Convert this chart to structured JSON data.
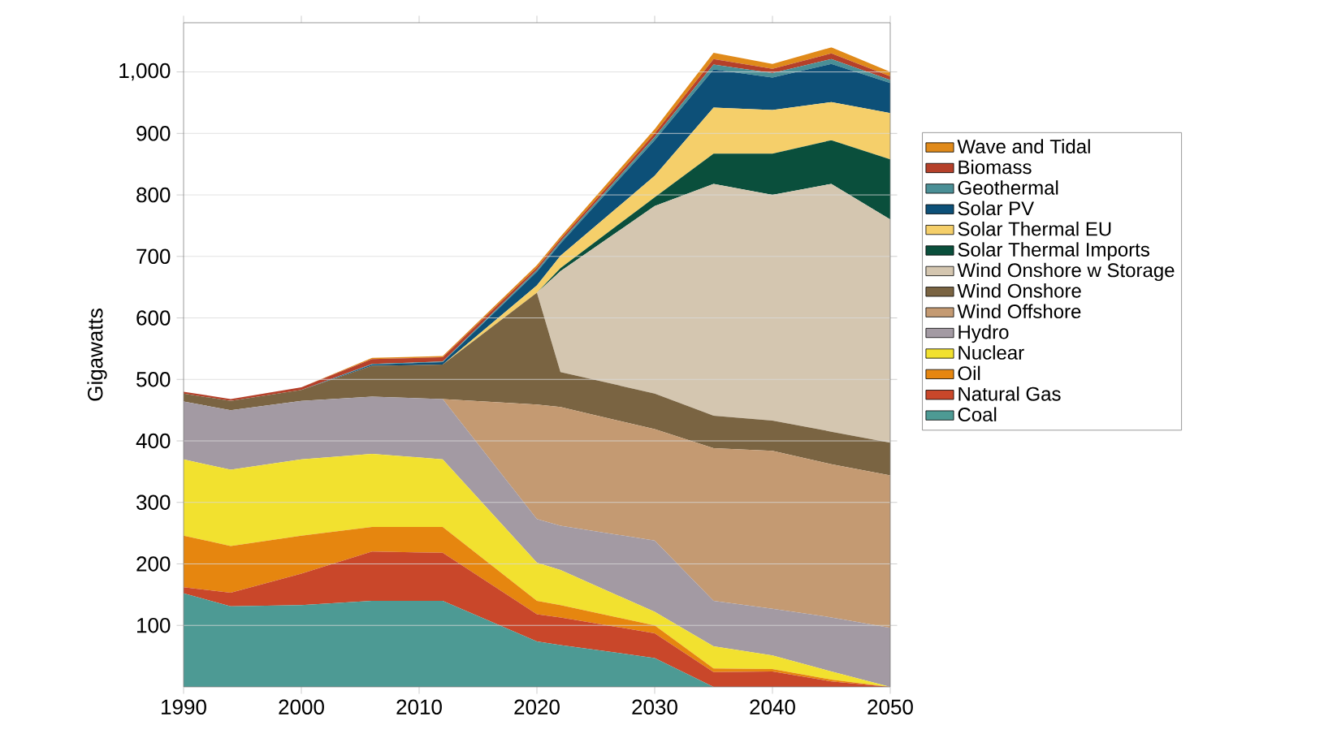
{
  "chart_data": {
    "type": "area",
    "stacked": true,
    "ylabel": "Gigawatts",
    "x": [
      1990,
      1994,
      2000,
      2006,
      2012,
      2020,
      2022,
      2030,
      2035,
      2040,
      2045,
      2050
    ],
    "series": [
      {
        "name": "Coal",
        "color": "#4d9a94",
        "values": [
          152,
          131,
          133,
          140,
          140,
          74,
          68,
          47,
          0,
          0,
          0,
          0
        ]
      },
      {
        "name": "Natural Gas",
        "color": "#c9472a",
        "values": [
          10,
          22,
          51,
          80,
          78,
          44,
          45,
          40,
          24,
          25,
          9,
          0
        ]
      },
      {
        "name": "Oil",
        "color": "#e6860f",
        "values": [
          84,
          76,
          62,
          40,
          42,
          22,
          20,
          13,
          6,
          4,
          3,
          0
        ]
      },
      {
        "name": "Nuclear",
        "color": "#f2e12f",
        "values": [
          124,
          124,
          124,
          119,
          110,
          62,
          57,
          22,
          36,
          22,
          13,
          0
        ]
      },
      {
        "name": "Hydro",
        "color": "#a39aa3",
        "values": [
          94,
          97,
          95,
          93,
          98,
          71,
          72,
          116,
          74,
          76,
          88,
          96
        ]
      },
      {
        "name": "Wind Offshore",
        "color": "#c49a72",
        "values": [
          0,
          0,
          0,
          0,
          0,
          186,
          193,
          181,
          248,
          257,
          249,
          248
        ]
      },
      {
        "name": "Wind Onshore",
        "color": "#7a6442",
        "values": [
          13,
          15,
          18,
          50,
          56,
          182,
          57,
          58,
          53,
          49,
          53,
          53
        ]
      },
      {
        "name": "Wind Onshore w Storage",
        "color": "#d4c6b0",
        "values": [
          0,
          0,
          0,
          0,
          0,
          0,
          164,
          305,
          377,
          367,
          403,
          363
        ]
      },
      {
        "name": "Solar Thermal Imports",
        "color": "#0a4f3c",
        "values": [
          0,
          0,
          0,
          0,
          0,
          0,
          5,
          14,
          49,
          67,
          71,
          98
        ]
      },
      {
        "name": "Solar Thermal EU",
        "color": "#f5cf6a",
        "values": [
          0,
          0,
          0,
          0,
          0,
          12,
          20,
          35,
          75,
          71,
          62,
          75
        ]
      },
      {
        "name": "Solar PV",
        "color": "#0d5078",
        "values": [
          0,
          0,
          0,
          2,
          4,
          22,
          20,
          58,
          62,
          53,
          62,
          49
        ]
      },
      {
        "name": "Geothermal",
        "color": "#4a8f96",
        "values": [
          0,
          0,
          0,
          1,
          1,
          3,
          3,
          5,
          8,
          7,
          8,
          5
        ]
      },
      {
        "name": "Biomass",
        "color": "#b5402a",
        "values": [
          3,
          3,
          4,
          8,
          7,
          4,
          4,
          6,
          9,
          7,
          9,
          6
        ]
      },
      {
        "name": "Wave and Tidal",
        "color": "#e08a1a",
        "values": [
          0,
          0,
          0,
          2,
          2,
          4,
          4,
          7,
          10,
          8,
          10,
          7
        ]
      }
    ],
    "xlim": [
      1990,
      2050
    ],
    "ylim": [
      0,
      1080
    ],
    "xticks": [
      1990,
      2000,
      2010,
      2020,
      2030,
      2040,
      2050
    ],
    "yticks": [
      100,
      200,
      300,
      400,
      500,
      600,
      700,
      800,
      900,
      {
        "value": 1000,
        "label": "1,000"
      }
    ],
    "grid": "y",
    "legend": "right"
  }
}
